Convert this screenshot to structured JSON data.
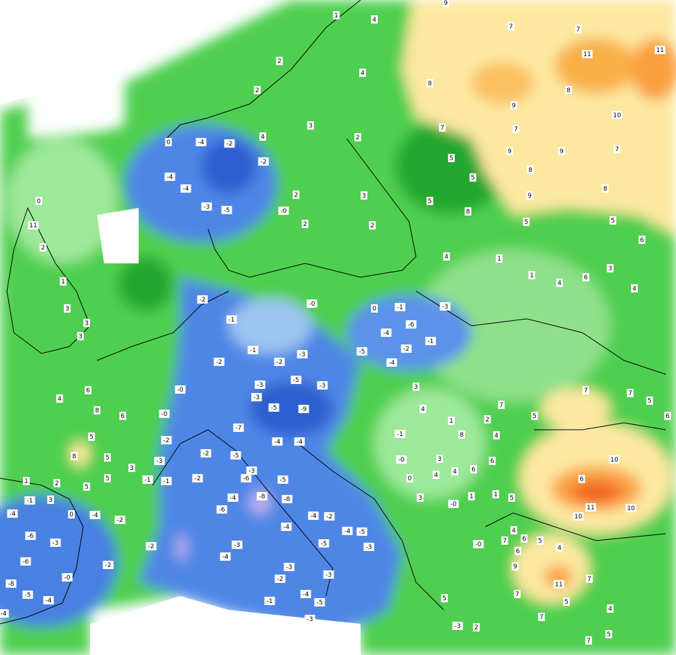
{
  "title": null,
  "stations": [
    "1",
    "4",
    "2",
    "2",
    "4",
    "3",
    "4",
    "2",
    "-4",
    "-2",
    "0",
    "-2",
    "-4",
    "-4",
    "-3",
    "-5",
    "-0",
    "2",
    "2",
    "2",
    "3",
    "9",
    "7",
    "7",
    "11",
    "11",
    "8",
    "9",
    "8",
    "10",
    "7",
    "7",
    "9",
    "8",
    "9",
    "7",
    "5",
    "5",
    "9",
    "8",
    "5",
    "8",
    "5",
    "5",
    "6",
    "4",
    "1",
    "1",
    "4",
    "6",
    "3",
    "4",
    "0",
    "11",
    "2",
    "1",
    "3",
    "3",
    "3",
    "-2",
    "-1",
    "-1",
    "-2",
    "-0",
    "0",
    "-1",
    "-6",
    "-3",
    "-4",
    "-1",
    "-2",
    "-2",
    "-3",
    "-5",
    "-4",
    "-3",
    "-5",
    "-3",
    "-9",
    "-3",
    "-5",
    "-7",
    "-4",
    "-4",
    "-5",
    "-3",
    "-6",
    "-5",
    "-4",
    "-8",
    "-8",
    "-6",
    "-4",
    "-4",
    "-2",
    "-4",
    "-5",
    "-3",
    "-5",
    "-3",
    "-4",
    "-3",
    "-2",
    "-3",
    "-1",
    "-4",
    "-5",
    "-3",
    "-0",
    "-2",
    "-3",
    "-1",
    "-1",
    "-2",
    "-2",
    "-0",
    "6",
    "4",
    "8",
    "6",
    "5",
    "5",
    "8",
    "5",
    "5",
    "3",
    "2",
    "1",
    "-4",
    "-6",
    "-3",
    "-6",
    "-8",
    "-5",
    "-4",
    "-4",
    "-0",
    "-4",
    "-2",
    "-2",
    "-2",
    "0",
    "3",
    "-1",
    "3",
    "4",
    "1",
    "2",
    "7",
    "5",
    "7",
    "7",
    "5",
    "6",
    "8",
    "4",
    "6",
    "6",
    "4",
    "3",
    "4",
    "-0",
    "-1",
    "0",
    "3",
    "-0",
    "1",
    "1",
    "5",
    "10",
    "6",
    "11",
    "10",
    "10",
    "4",
    "6",
    "7",
    "5",
    "4",
    "6",
    "11",
    "7",
    "9",
    "-0",
    "7",
    "7",
    "5",
    "4",
    "7",
    "5",
    "2",
    "-3",
    "5"
  ]
}
